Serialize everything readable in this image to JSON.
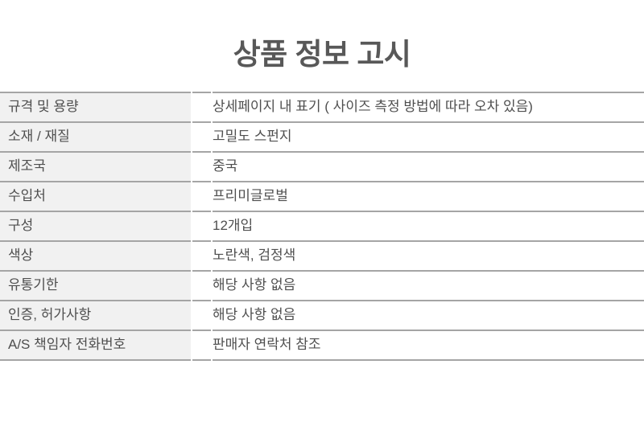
{
  "page": {
    "title": "상품 정보 고시"
  },
  "colors": {
    "label_bg": "#f1f1f1",
    "border": "#a5a5a5",
    "title_text": "#585858",
    "body_text": "#4f4f4f"
  },
  "table": {
    "rows": [
      {
        "label": "규격 및 용량",
        "value": "상세페이지 내 표기 ( 사이즈 측정 방법에 따라 오차 있음)"
      },
      {
        "label": "소재 / 재질",
        "value": "고밀도 스펀지"
      },
      {
        "label": "제조국",
        "value": "중국"
      },
      {
        "label": "수입처",
        "value": "프리미글로벌"
      },
      {
        "label": "구성",
        "value": "12개입"
      },
      {
        "label": "색상",
        "value": "노란색, 검정색"
      },
      {
        "label": "유통기한",
        "value": "해당 사항 없음"
      },
      {
        "label": "인증, 허가사항",
        "value": "해당 사항 없음"
      },
      {
        "label": "A/S 책임자 전화번호",
        "value": "판매자 연락처 참조"
      }
    ]
  }
}
